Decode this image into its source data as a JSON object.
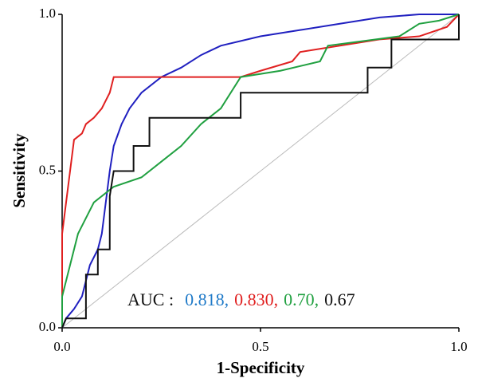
{
  "chart_data": {
    "type": "line",
    "xlabel": "1-Specificity",
    "ylabel": "Sensitivity",
    "xlim": [
      0,
      1
    ],
    "ylim": [
      0,
      1
    ],
    "xticks": [
      {
        "value": 0,
        "label": "0.0"
      },
      {
        "value": 0.5,
        "label": "0.5"
      },
      {
        "value": 1,
        "label": "1.0"
      }
    ],
    "yticks": [
      {
        "value": 0,
        "label": "0.0"
      },
      {
        "value": 0.5,
        "label": "0.5"
      },
      {
        "value": 1,
        "label": "1.0"
      }
    ],
    "reference_color": "#bbbbbb",
    "series": [
      {
        "color": "#2020c0",
        "x": [
          0,
          0.01,
          0.03,
          0.05,
          0.07,
          0.09,
          0.1,
          0.11,
          0.12,
          0.13,
          0.15,
          0.17,
          0.2,
          0.25,
          0.3,
          0.35,
          0.4,
          0.5,
          0.6,
          0.7,
          0.8,
          0.9,
          1.0
        ],
        "values": [
          0,
          0.03,
          0.06,
          0.1,
          0.2,
          0.25,
          0.3,
          0.4,
          0.5,
          0.58,
          0.65,
          0.7,
          0.75,
          0.8,
          0.83,
          0.87,
          0.9,
          0.93,
          0.95,
          0.97,
          0.99,
          1.0,
          1.0
        ]
      },
      {
        "color": "#e02020",
        "x": [
          0,
          0,
          0.01,
          0.02,
          0.03,
          0.05,
          0.06,
          0.08,
          0.1,
          0.12,
          0.13,
          0.2,
          0.3,
          0.45,
          0.5,
          0.58,
          0.6,
          0.7,
          0.8,
          0.9,
          0.97,
          1.0
        ],
        "values": [
          0,
          0.3,
          0.4,
          0.5,
          0.6,
          0.62,
          0.65,
          0.67,
          0.7,
          0.75,
          0.8,
          0.8,
          0.8,
          0.8,
          0.82,
          0.85,
          0.88,
          0.9,
          0.92,
          0.93,
          0.96,
          1.0
        ]
      },
      {
        "color": "#20a040",
        "x": [
          0,
          0,
          0.02,
          0.04,
          0.06,
          0.08,
          0.1,
          0.13,
          0.2,
          0.25,
          0.3,
          0.35,
          0.4,
          0.45,
          0.55,
          0.65,
          0.67,
          0.85,
          0.9,
          0.95,
          1.0
        ],
        "values": [
          0,
          0.1,
          0.2,
          0.3,
          0.35,
          0.4,
          0.42,
          0.45,
          0.48,
          0.53,
          0.58,
          0.65,
          0.7,
          0.8,
          0.82,
          0.85,
          0.9,
          0.93,
          0.97,
          0.98,
          1.0
        ]
      },
      {
        "color": "#111111",
        "x": [
          0,
          0.01,
          0.06,
          0.06,
          0.09,
          0.09,
          0.12,
          0.12,
          0.13,
          0.18,
          0.18,
          0.22,
          0.22,
          0.45,
          0.45,
          0.77,
          0.77,
          0.83,
          0.83,
          1.0,
          1.0
        ],
        "values": [
          0,
          0.03,
          0.03,
          0.17,
          0.17,
          0.25,
          0.25,
          0.42,
          0.5,
          0.5,
          0.58,
          0.58,
          0.67,
          0.67,
          0.75,
          0.75,
          0.83,
          0.83,
          0.92,
          0.92,
          1.0
        ]
      }
    ],
    "annotation": [
      {
        "text": "AUC :",
        "color": "#111111"
      },
      {
        "text": "0.818,",
        "color": "#1f7ac8"
      },
      {
        "text": "0.830,",
        "color": "#e02020"
      },
      {
        "text": "0.70,",
        "color": "#20a040"
      },
      {
        "text": "0.67",
        "color": "#111111"
      }
    ]
  }
}
